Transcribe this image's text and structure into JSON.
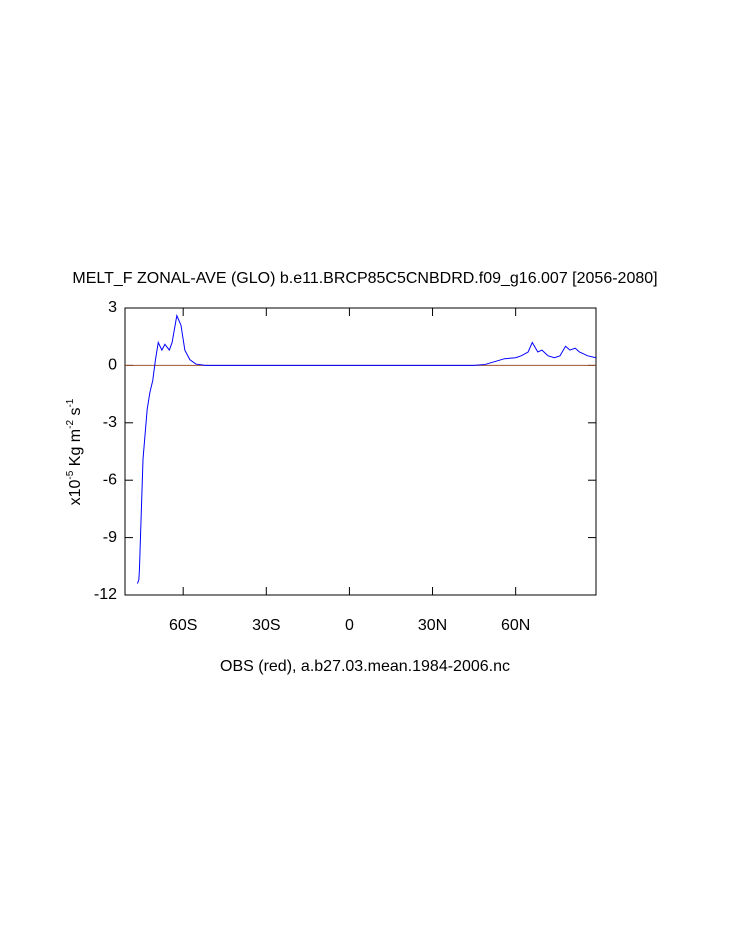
{
  "chart_data": {
    "type": "line",
    "title": "MELT_F ZONAL-AVE (GLO) b.e11.BRCP85C5CNBDRD.f09_g16.007 [2056-2080]",
    "xlabel": "OBS (red), a.b27.03.mean.1984-2006.nc",
    "ylabel": [
      {
        "text": "x10",
        "sup": false
      },
      {
        "text": "-5",
        "sup": true
      },
      {
        "text": " Kg m",
        "sup": false
      },
      {
        "text": "-2",
        "sup": true
      },
      {
        "text": " s",
        "sup": false
      },
      {
        "text": "-1",
        "sup": true
      }
    ],
    "xlim": [
      -81,
      89
    ],
    "ylim": [
      -12,
      3
    ],
    "xticks": [
      {
        "value": -60,
        "label": "60S"
      },
      {
        "value": -30,
        "label": "30S"
      },
      0,
      {
        "value": 30,
        "label": "30N"
      },
      {
        "value": 60,
        "label": "60N"
      }
    ],
    "yticks": [
      3,
      0,
      -3,
      -6,
      -9,
      -12
    ],
    "reference_line": {
      "value": 0,
      "color": "#a0522d"
    },
    "series": [
      {
        "color": "#0000ff",
        "x": [
          -76.5,
          -76,
          -75.8,
          -74.5,
          -73,
          -72,
          -71,
          -70,
          -69,
          -67.7,
          -66.6,
          -65,
          -64,
          -62.3,
          -60.8,
          -59.4,
          -57.6,
          -55.4,
          -52,
          45,
          49,
          52.5,
          56,
          60,
          62,
          64.5,
          66,
          68,
          69.5,
          71.7,
          74,
          76,
          78,
          79.6,
          81.5,
          83,
          86,
          89
        ],
        "values": [
          -11.4,
          -11.2,
          -10.7,
          -4.9,
          -2.3,
          -1.4,
          -0.8,
          0.3,
          1.2,
          0.8,
          1.1,
          0.8,
          1.2,
          2.6,
          2.1,
          0.8,
          0.3,
          0.07,
          0,
          0,
          0.05,
          0.2,
          0.35,
          0.4,
          0.5,
          0.7,
          1.2,
          0.7,
          0.8,
          0.5,
          0.4,
          0.5,
          1.0,
          0.8,
          0.9,
          0.7,
          0.5,
          0.4
        ]
      }
    ]
  }
}
